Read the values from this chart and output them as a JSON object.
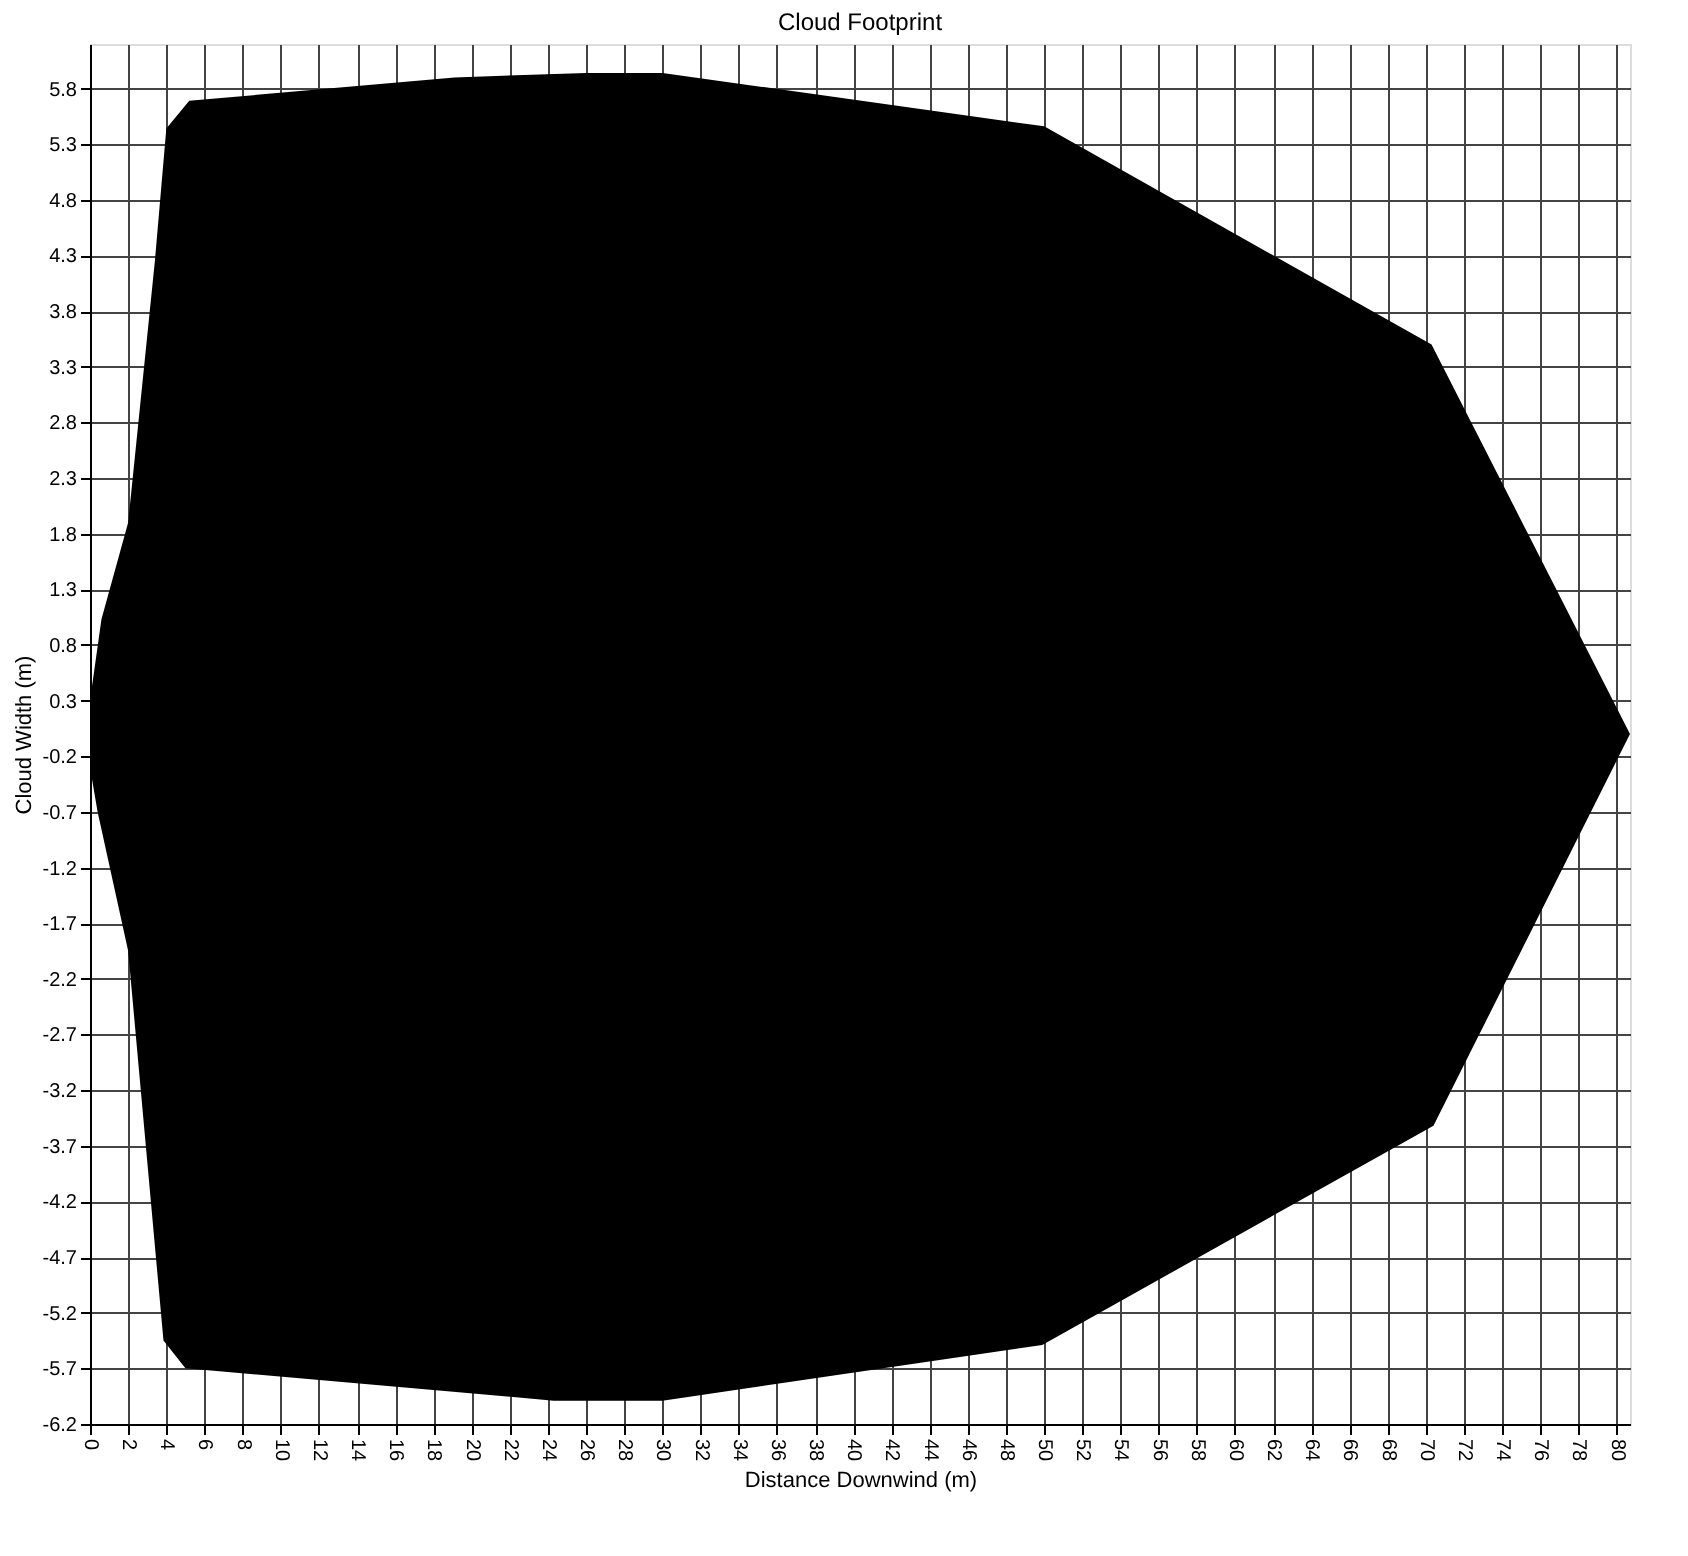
{
  "chart_data": {
    "type": "area",
    "title": "Cloud Footprint",
    "xlabel": "Distance Downwind (m)",
    "ylabel": "Cloud Width (m)",
    "series": [
      {
        "color": "#000000",
        "x": [
          0,
          0.6,
          2,
          3.4,
          4,
          5.2,
          19.1,
          26,
          30,
          50,
          70.3,
          80.7
        ],
        "values": [
          0.3,
          1.03,
          1.9,
          4.25,
          5.44,
          5.69,
          5.9,
          5.94,
          5.94,
          5.46,
          3.5,
          0
        ]
      },
      {
        "color": "#000000",
        "x": [
          0,
          0.4,
          2,
          3.85,
          5,
          24.3,
          30,
          49.9,
          70.4,
          80.7
        ],
        "values": [
          -0.3,
          -0.7,
          -1.95,
          -5.45,
          -5.7,
          -5.99,
          -5.99,
          -5.49,
          -3.52,
          0
        ]
      }
    ],
    "xlim": [
      0,
      80.7
    ],
    "ylim": [
      -6.2,
      6.2
    ],
    "xticks": [
      0,
      2,
      4,
      6,
      8,
      10,
      12,
      14,
      16,
      18,
      20,
      22,
      24,
      26,
      28,
      30,
      32,
      34,
      36,
      38,
      40,
      42,
      44,
      46,
      48,
      50,
      52,
      54,
      56,
      58,
      60,
      62,
      64,
      66,
      68,
      70,
      72,
      74,
      76,
      78,
      80
    ],
    "yticks": [
      5.8,
      5.3,
      4.8,
      4.3,
      3.8,
      3.3,
      2.8,
      2.3,
      1.8,
      1.3,
      0.8,
      0.3,
      -0.2,
      -0.7,
      -1.2,
      -1.7,
      -2.2,
      -2.7,
      -3.2,
      -3.7,
      -4.2,
      -4.7,
      -5.2,
      -5.7,
      -6.2
    ],
    "grid": true,
    "legend": false
  }
}
